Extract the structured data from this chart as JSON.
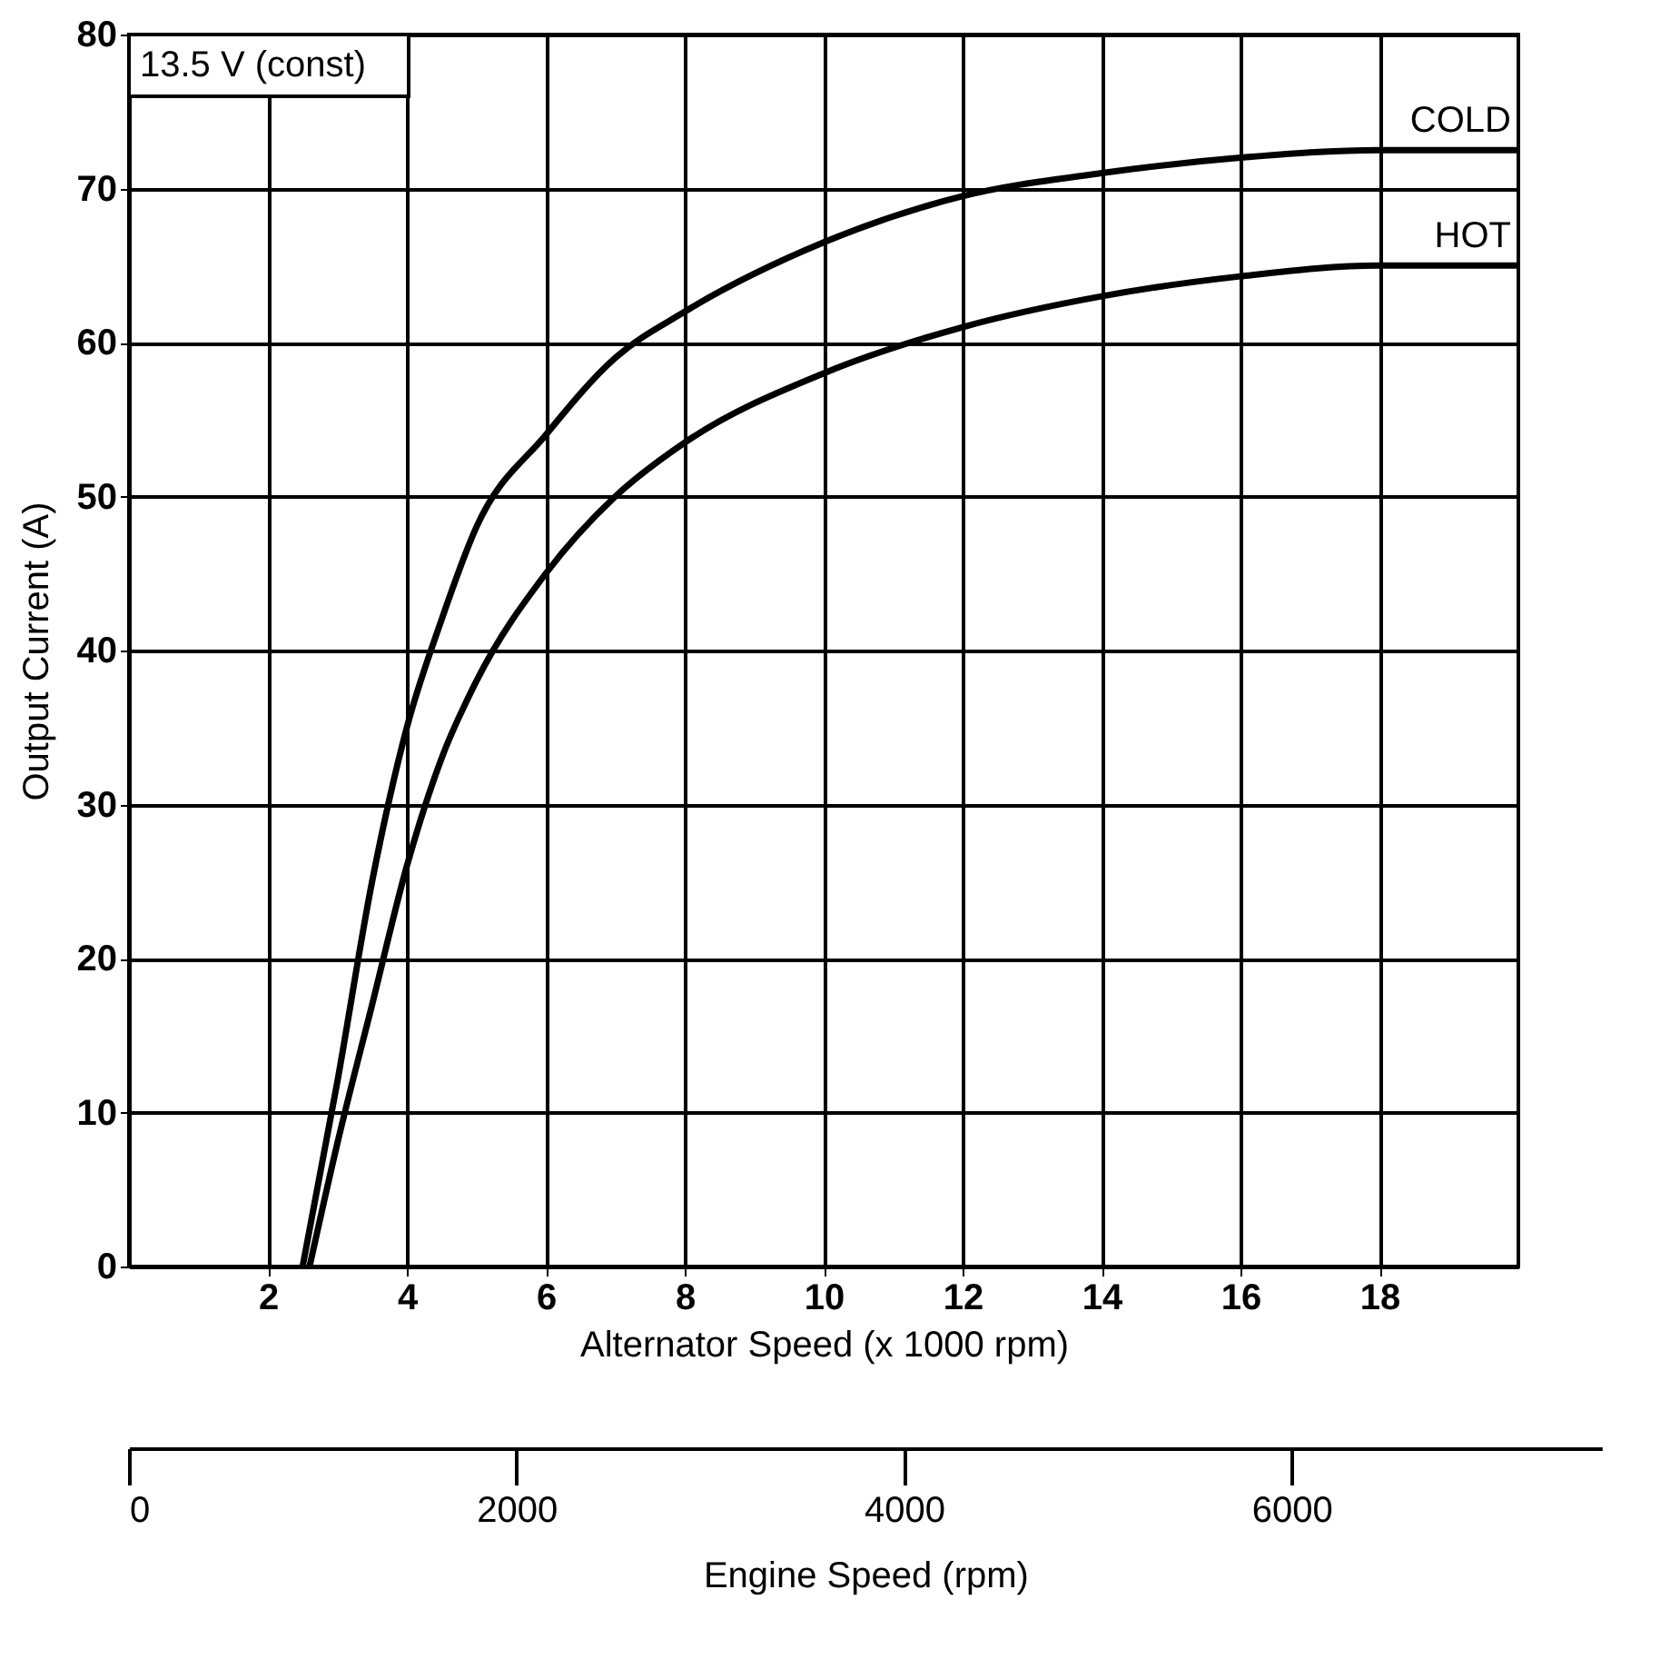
{
  "chart_data": {
    "type": "line",
    "xlabel": "Alternator Speed (x 1000 rpm)",
    "ylabel": "Output Current (A)",
    "x2label": "Engine Speed (rpm)",
    "annotations": [
      "13.5 V (const)"
    ],
    "xlim": [
      0,
      20
    ],
    "xticks": [
      2,
      4,
      6,
      8,
      10,
      12,
      14,
      16,
      18
    ],
    "ylim": [
      0,
      80
    ],
    "yticks": [
      0,
      10,
      20,
      30,
      40,
      50,
      60,
      70,
      80
    ],
    "x2lim": [
      0,
      7600
    ],
    "x2ticks": [
      0,
      2000,
      4000,
      6000
    ],
    "grid": true,
    "legend": false,
    "marker": "none",
    "line_style": "solid",
    "series": [
      {
        "name": "COLD",
        "color": "#000000",
        "x": [
          2.5,
          3,
          3.5,
          4,
          4.5,
          5,
          6,
          7,
          8,
          10,
          12,
          14,
          16,
          18,
          20
        ],
        "values": [
          0,
          12,
          25,
          35,
          42,
          48,
          54,
          59,
          62,
          66.5,
          69.5,
          71,
          72,
          72.5,
          72.5
        ]
      },
      {
        "name": "HOT",
        "color": "#000000",
        "x": [
          2.6,
          3,
          3.5,
          4,
          4.5,
          5,
          6,
          7,
          8,
          10,
          12,
          14,
          16,
          18,
          20
        ],
        "values": [
          0,
          8,
          17,
          26,
          33,
          38,
          45,
          50,
          53.5,
          58,
          61,
          63,
          64.3,
          65,
          65
        ]
      }
    ]
  }
}
